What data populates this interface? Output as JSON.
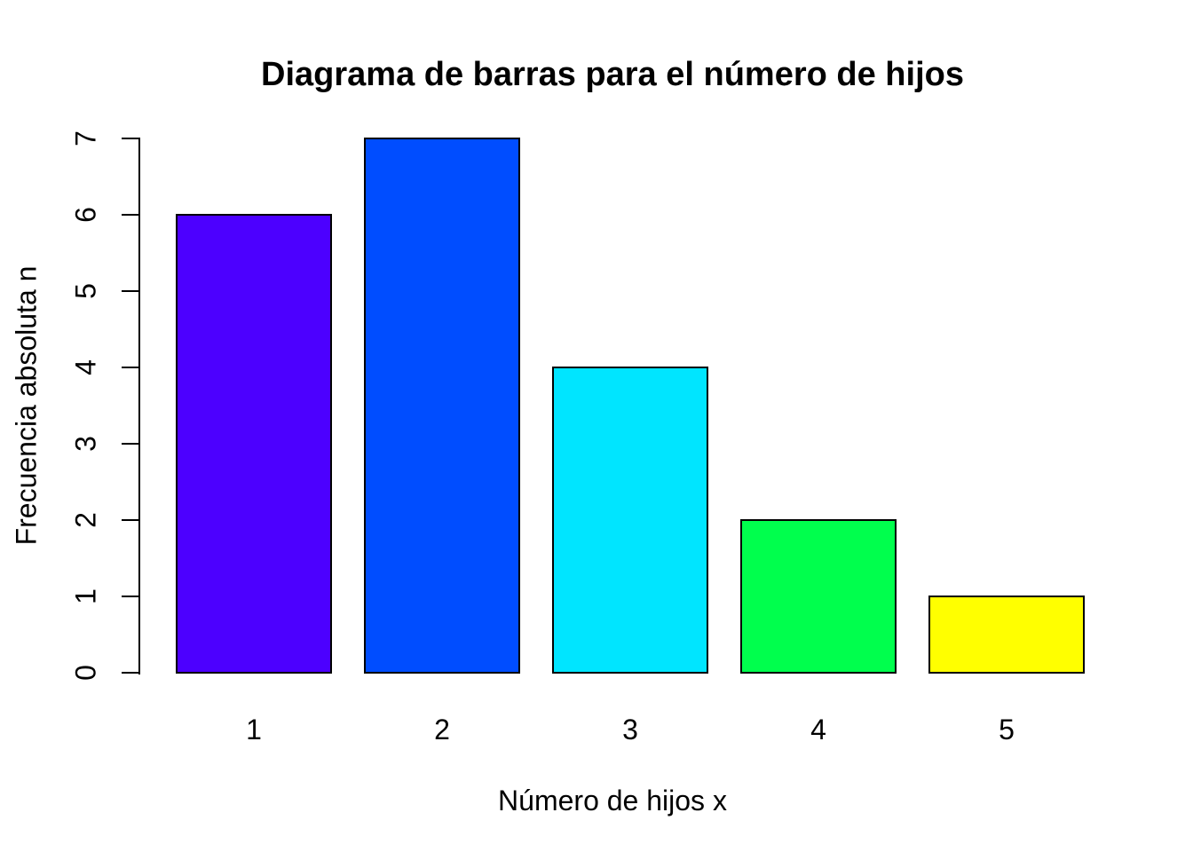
{
  "page": {
    "background": "#FFFFFF",
    "text_color": "#000000",
    "axis_color": "#000000"
  },
  "chart_data": {
    "type": "bar",
    "title": "Diagrama de barras para el número de hijos",
    "xlabel": "Número de hijos x",
    "ylabel": "Frecuencia absoluta n",
    "categories": [
      "1",
      "2",
      "3",
      "4",
      "5"
    ],
    "values": [
      6,
      7,
      4,
      2,
      1
    ],
    "bar_colors": [
      "#4C00FF",
      "#004DFF",
      "#00E5FF",
      "#00FF4D",
      "#FFFF00"
    ],
    "bar_border_color": "#000000",
    "ylim": [
      0,
      7
    ],
    "yticks": [
      0,
      1,
      2,
      3,
      4,
      5,
      6,
      7
    ],
    "grid": false,
    "legend_position": "none",
    "x_axis_line": false,
    "y_axis_line": true
  }
}
